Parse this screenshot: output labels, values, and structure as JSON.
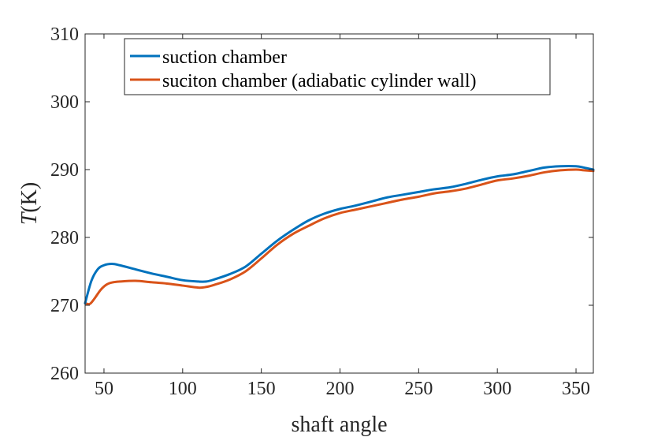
{
  "chart_data": {
    "type": "line",
    "xlabel": "shaft angle",
    "ylabel_italic": "T",
    "ylabel_unit": "(K)",
    "xlim": [
      38,
      361
    ],
    "ylim": [
      260,
      310
    ],
    "xticks": [
      50,
      100,
      150,
      200,
      250,
      300,
      350
    ],
    "yticks": [
      260,
      270,
      280,
      290,
      300,
      310
    ],
    "grid": false,
    "legend_position": "top-left",
    "series": [
      {
        "name": "suction chamber",
        "color": "#0072BD",
        "x": [
          38,
          42,
          46,
          50,
          55,
          60,
          70,
          80,
          90,
          100,
          110,
          115,
          120,
          130,
          140,
          150,
          160,
          170,
          180,
          190,
          200,
          210,
          220,
          230,
          240,
          250,
          260,
          270,
          280,
          290,
          300,
          310,
          320,
          330,
          340,
          350,
          355,
          361
        ],
        "values": [
          270.3,
          273.6,
          275.3,
          275.9,
          276.1,
          275.9,
          275.3,
          274.7,
          274.2,
          273.7,
          273.5,
          273.5,
          273.8,
          274.6,
          275.7,
          277.6,
          279.5,
          281.1,
          282.5,
          283.5,
          284.2,
          284.7,
          285.3,
          285.9,
          286.3,
          286.7,
          287.1,
          287.4,
          287.9,
          288.5,
          289.0,
          289.3,
          289.8,
          290.3,
          290.5,
          290.5,
          290.3,
          290.0
        ]
      },
      {
        "name": "suciton chamber (adiabatic cylinder wall)",
        "color": "#D95319",
        "x": [
          38,
          41,
          44,
          48,
          52,
          56,
          60,
          70,
          80,
          90,
          100,
          110,
          115,
          120,
          130,
          140,
          150,
          160,
          170,
          180,
          190,
          200,
          210,
          220,
          230,
          240,
          250,
          260,
          270,
          280,
          290,
          300,
          310,
          320,
          330,
          340,
          350,
          355,
          361
        ],
        "values": [
          270.3,
          270.2,
          271.0,
          272.3,
          273.1,
          273.4,
          273.5,
          273.6,
          273.4,
          273.2,
          272.9,
          272.6,
          272.7,
          273.0,
          273.8,
          275.0,
          276.9,
          278.9,
          280.5,
          281.7,
          282.8,
          283.6,
          284.1,
          284.6,
          285.1,
          285.6,
          286.0,
          286.5,
          286.8,
          287.2,
          287.8,
          288.4,
          288.7,
          289.1,
          289.6,
          289.9,
          290.0,
          289.9,
          289.8
        ]
      }
    ]
  }
}
